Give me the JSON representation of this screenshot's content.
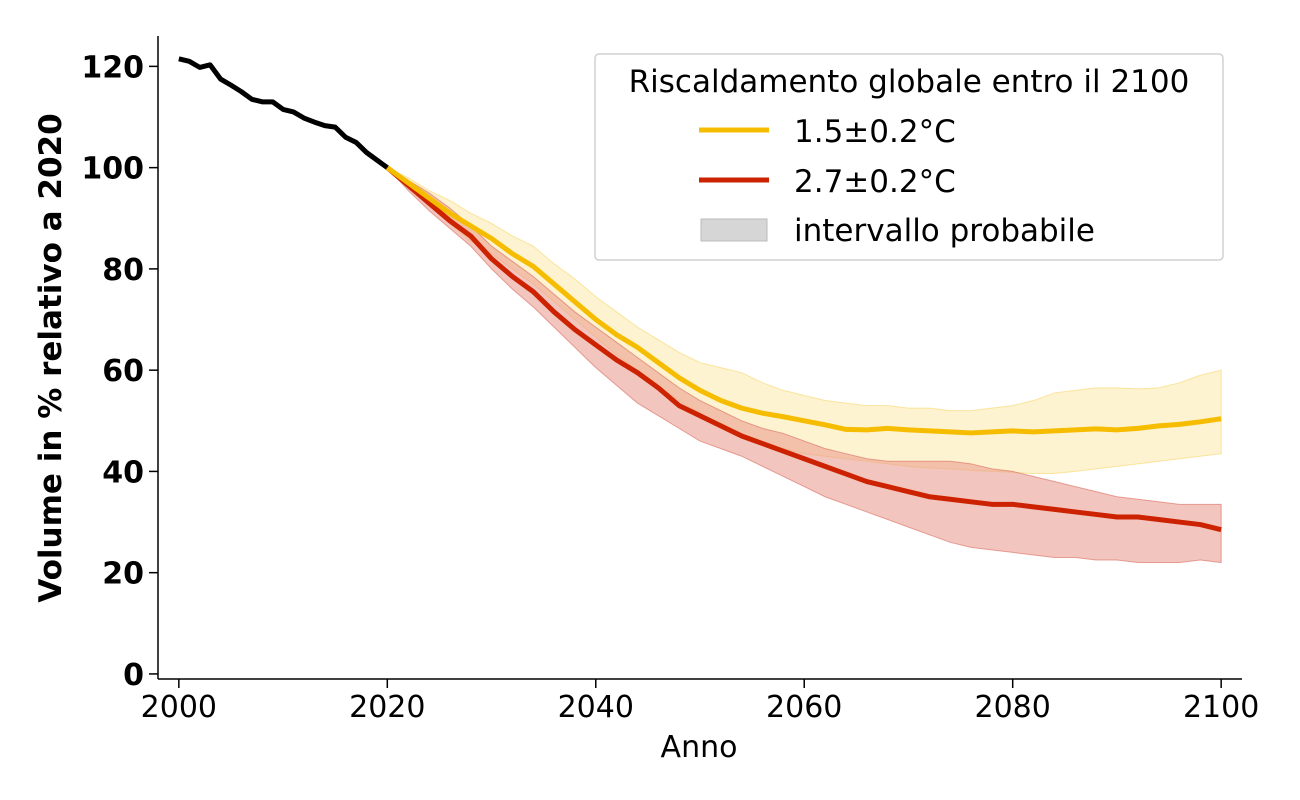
{
  "chart_data": {
    "type": "line",
    "title": "",
    "xlabel": "Anno",
    "ylabel": "Volume in % relativo a 2020",
    "xlim": [
      1998,
      2102
    ],
    "ylim": [
      -1,
      126
    ],
    "xticks": [
      2000,
      2020,
      2040,
      2060,
      2080,
      2100
    ],
    "yticks": [
      0,
      20,
      40,
      60,
      80,
      100,
      120
    ],
    "xtick_labels": [
      "2000",
      "2020",
      "2040",
      "2060",
      "2080",
      "2100"
    ],
    "ytick_labels": [
      "0",
      "20",
      "40",
      "60",
      "80",
      "100",
      "120"
    ],
    "legend": {
      "title": "Riscaldamento globale entro il 2100",
      "position": "top-right",
      "entries": [
        "1.5±0.2°C",
        "2.7±0.2°C",
        "intervallo probabile"
      ]
    },
    "colors": {
      "historical": "#000000",
      "low": "#f5bc00",
      "high": "#cc2200",
      "low_band": "#fde9a9",
      "high_band": "#e9958b",
      "legend_band": "#d6d6d6"
    },
    "series": [
      {
        "name": "storico",
        "x": [
          2000,
          2001,
          2002,
          2003,
          2004,
          2005,
          2006,
          2007,
          2008,
          2009,
          2010,
          2011,
          2012,
          2013,
          2014,
          2015,
          2016,
          2017,
          2018,
          2019,
          2020
        ],
        "values": [
          121.5,
          121,
          119.8,
          120.3,
          117.5,
          116.3,
          115,
          113.5,
          113,
          113,
          111.5,
          111,
          109.8,
          109,
          108.3,
          108,
          106,
          105,
          103,
          101.5,
          100
        ]
      },
      {
        "name": "1.5±0.2°C",
        "x": [
          2020,
          2022,
          2024,
          2026,
          2028,
          2030,
          2032,
          2034,
          2036,
          2038,
          2040,
          2042,
          2044,
          2046,
          2048,
          2050,
          2052,
          2054,
          2056,
          2058,
          2060,
          2062,
          2064,
          2066,
          2068,
          2070,
          2072,
          2074,
          2076,
          2078,
          2080,
          2082,
          2084,
          2086,
          2088,
          2090,
          2092,
          2094,
          2096,
          2098,
          2100
        ],
        "values": [
          100,
          97,
          94,
          91,
          88.5,
          86,
          83,
          80.5,
          77,
          73.5,
          70,
          67,
          64.5,
          61.5,
          58.5,
          56,
          54,
          52.5,
          51.5,
          50.8,
          50,
          49.2,
          48.3,
          48.2,
          48.5,
          48.2,
          48,
          47.8,
          47.6,
          47.8,
          48,
          47.8,
          48,
          48.2,
          48.4,
          48.2,
          48.5,
          49,
          49.3,
          49.8,
          50.4
        ],
        "lower": [
          100,
          96,
          92.5,
          89,
          85.5,
          83,
          80,
          77,
          73.5,
          70,
          66.5,
          63,
          60,
          57,
          54,
          51.5,
          49,
          47,
          45.5,
          44.5,
          43.5,
          43,
          42.5,
          42,
          41.5,
          41,
          40.7,
          40.5,
          40.2,
          40,
          39.8,
          39.6,
          39.6,
          40,
          40.5,
          41,
          41.5,
          42,
          42.5,
          43,
          43.5
        ],
        "upper": [
          100,
          98,
          95.5,
          93.5,
          91,
          89,
          86.5,
          84.5,
          81,
          78,
          74.5,
          71.5,
          68.5,
          66,
          63.5,
          61.5,
          60.5,
          59.5,
          57.5,
          56,
          55,
          54,
          53.5,
          53,
          53,
          52.5,
          52.5,
          52,
          52,
          52.5,
          53,
          54,
          55.5,
          56,
          56.5,
          56.5,
          56.3,
          56.5,
          57.5,
          59,
          60
        ]
      },
      {
        "name": "2.7±0.2°C",
        "x": [
          2020,
          2022,
          2024,
          2026,
          2028,
          2030,
          2032,
          2034,
          2036,
          2038,
          2040,
          2042,
          2044,
          2046,
          2048,
          2050,
          2052,
          2054,
          2056,
          2058,
          2060,
          2062,
          2064,
          2066,
          2068,
          2070,
          2072,
          2074,
          2076,
          2078,
          2080,
          2082,
          2084,
          2086,
          2088,
          2090,
          2092,
          2094,
          2096,
          2098,
          2100
        ],
        "values": [
          100,
          96.5,
          93,
          89.5,
          86.5,
          82,
          78.5,
          75.5,
          71.5,
          68,
          65,
          62,
          59.5,
          56.5,
          53,
          51,
          49,
          47,
          45.5,
          44,
          42.5,
          41,
          39.5,
          38,
          37,
          36,
          35,
          34.5,
          34,
          33.5,
          33.5,
          33,
          32.5,
          32,
          31.5,
          31,
          31,
          30.5,
          30,
          29.5,
          28.5
        ],
        "lower": [
          100,
          95.5,
          91.5,
          88,
          84.5,
          80,
          76,
          72.5,
          68.5,
          64.5,
          60.5,
          57,
          53.5,
          51,
          48.5,
          46,
          44.5,
          43,
          41,
          39,
          37,
          35,
          33.5,
          32,
          30.5,
          29,
          27.5,
          26,
          25,
          24.5,
          24,
          23.5,
          23,
          23,
          22.5,
          22.5,
          22,
          22,
          22,
          22.5,
          22
        ],
        "upper": [
          100,
          97.5,
          95,
          92,
          88.5,
          84.5,
          81.5,
          78.5,
          75,
          71.5,
          68.5,
          65.5,
          62.5,
          59.5,
          56.5,
          54,
          52,
          50,
          48.5,
          47.5,
          46,
          44.5,
          43.5,
          42.5,
          42,
          42,
          42,
          42,
          41.5,
          40.5,
          40,
          39,
          38,
          37,
          36,
          35,
          34.5,
          34,
          33.5,
          33.5,
          33.5
        ]
      }
    ]
  }
}
